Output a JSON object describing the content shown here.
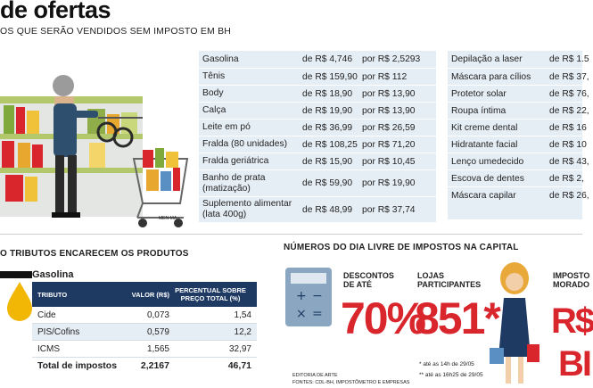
{
  "header": {
    "title": "de ofertas",
    "subtitle": "OS QUE SERÃO VENDIDOS SEM IMPOSTO EM BH"
  },
  "illustration": {
    "credit": "MEN-MA"
  },
  "prices_left": [
    {
      "name": "Gasolina",
      "de": "de R$ 4,746",
      "por": "por R$ 2,5293"
    },
    {
      "name": "Tênis",
      "de": "de R$ 159,90",
      "por": "por R$ 112"
    },
    {
      "name": "Body",
      "de": "de R$ 18,90",
      "por": "por R$ 13,90"
    },
    {
      "name": "Calça",
      "de": "de R$ 19,90",
      "por": "por R$ 13,90"
    },
    {
      "name": "Leite em pó",
      "de": "de R$ 36,99",
      "por": "por R$ 26,59"
    },
    {
      "name": "Fralda (80 unidades)",
      "de": "de R$ 108,25",
      "por": "por R$ 71,20"
    },
    {
      "name": "Fralda geriátrica",
      "de": "de R$ 15,90",
      "por": "por R$ 10,45"
    },
    {
      "name": "Banho de prata (matização)",
      "de": "de R$ 59,90",
      "por": "por R$ 19,90"
    },
    {
      "name": "Suplemento alimentar (lata 400g)",
      "de": "de R$ 48,99",
      "por": "por R$ 37,74"
    }
  ],
  "prices_right": [
    {
      "name": "Depilação a laser",
      "de": "de R$ 1.5"
    },
    {
      "name": "Máscara para cílios",
      "de": "de R$ 37,"
    },
    {
      "name": "Protetor solar",
      "de": "de R$ 76,"
    },
    {
      "name": "Roupa íntima",
      "de": "de R$ 22,"
    },
    {
      "name": "Kit creme dental",
      "de": "de R$ 16"
    },
    {
      "name": "Hidratante facial",
      "de": "de R$ 10"
    },
    {
      "name": "Lenço umedecido",
      "de": "de R$ 43,"
    },
    {
      "name": "Escova de dentes",
      "de": "de R$ 2,"
    },
    {
      "name": "Máscara capilar",
      "de": "de R$ 26,"
    }
  ],
  "tributes": {
    "heading": "O TRIBUTOS  ENCARECEM OS PRODUTOS",
    "product": "Gasolina",
    "columns": [
      "TRIBUTO",
      "VALOR (R$)",
      "PERCENTUAL SOBRE PREÇO TOTAL (%)"
    ],
    "rows": [
      {
        "tributo": "Cide",
        "valor": "0,073",
        "pct": "1,54"
      },
      {
        "tributo": "PIS/Cofins",
        "valor": "0,579",
        "pct": "12,2"
      },
      {
        "tributo": "ICMS",
        "valor": "1,565",
        "pct": "32,97"
      }
    ],
    "total": {
      "label": "Total de impostos",
      "valor": "2,2167",
      "pct": "46,71"
    }
  },
  "numbers": {
    "heading": "NÚMEROS DO DIA LIVRE DE IMPOSTOS NA CAPITAL",
    "discount_label": "DESCONTOS DE ATÉ",
    "discount_value": "70%",
    "stores_label": "LOJAS PARTICIPANTES",
    "stores_value": "851*",
    "tax_label_1": "IMPOSTO",
    "tax_label_2": "MORADO",
    "tax_value_1": "R$",
    "tax_value_2": "BI",
    "footnote_1": "* até as 14h de 29/05",
    "footnote_2": "** até as 16h25 de 29/05",
    "credit_1": "EDITORIA DE ARTE",
    "credit_2": "FONTES: CDL-BH, IMPOSTÔMETRO E EMPRESAS"
  },
  "colors": {
    "accent_red": "#d9262c",
    "navy": "#1e3a63",
    "table_bg": "#e6eef5"
  }
}
